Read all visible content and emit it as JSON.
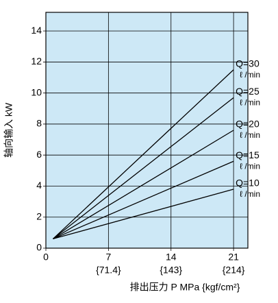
{
  "chart_data": {
    "type": "line",
    "y_label": "轴向输入 kW",
    "x_label": "排出压力 P MPa {kgf/cm²}",
    "x": [
      0.8,
      21
    ],
    "series": [
      {
        "name": "Q=30",
        "values": [
          0.6,
          11.5
        ]
      },
      {
        "name": "Q=25",
        "values": [
          0.6,
          9.7
        ]
      },
      {
        "name": "Q=20",
        "values": [
          0.6,
          7.6
        ]
      },
      {
        "name": "Q=15",
        "values": [
          0.6,
          5.6
        ]
      },
      {
        "name": "Q=10",
        "values": [
          0.6,
          3.8
        ]
      }
    ],
    "series_unit": "ℓ /min",
    "color": "#000000",
    "background": "#cde8f6",
    "xlim": [
      0,
      22.6
    ],
    "ylim": [
      0,
      15.2
    ],
    "xticks": [
      0,
      7,
      14,
      21
    ],
    "xticks_secondary": [
      {
        "value": 7,
        "label": "{71.4}"
      },
      {
        "value": 14,
        "label": "{143}"
      },
      {
        "value": 21,
        "label": "{214}"
      }
    ],
    "yticks": [
      0,
      2,
      4,
      6,
      8,
      10,
      12,
      14
    ],
    "grid": true
  }
}
